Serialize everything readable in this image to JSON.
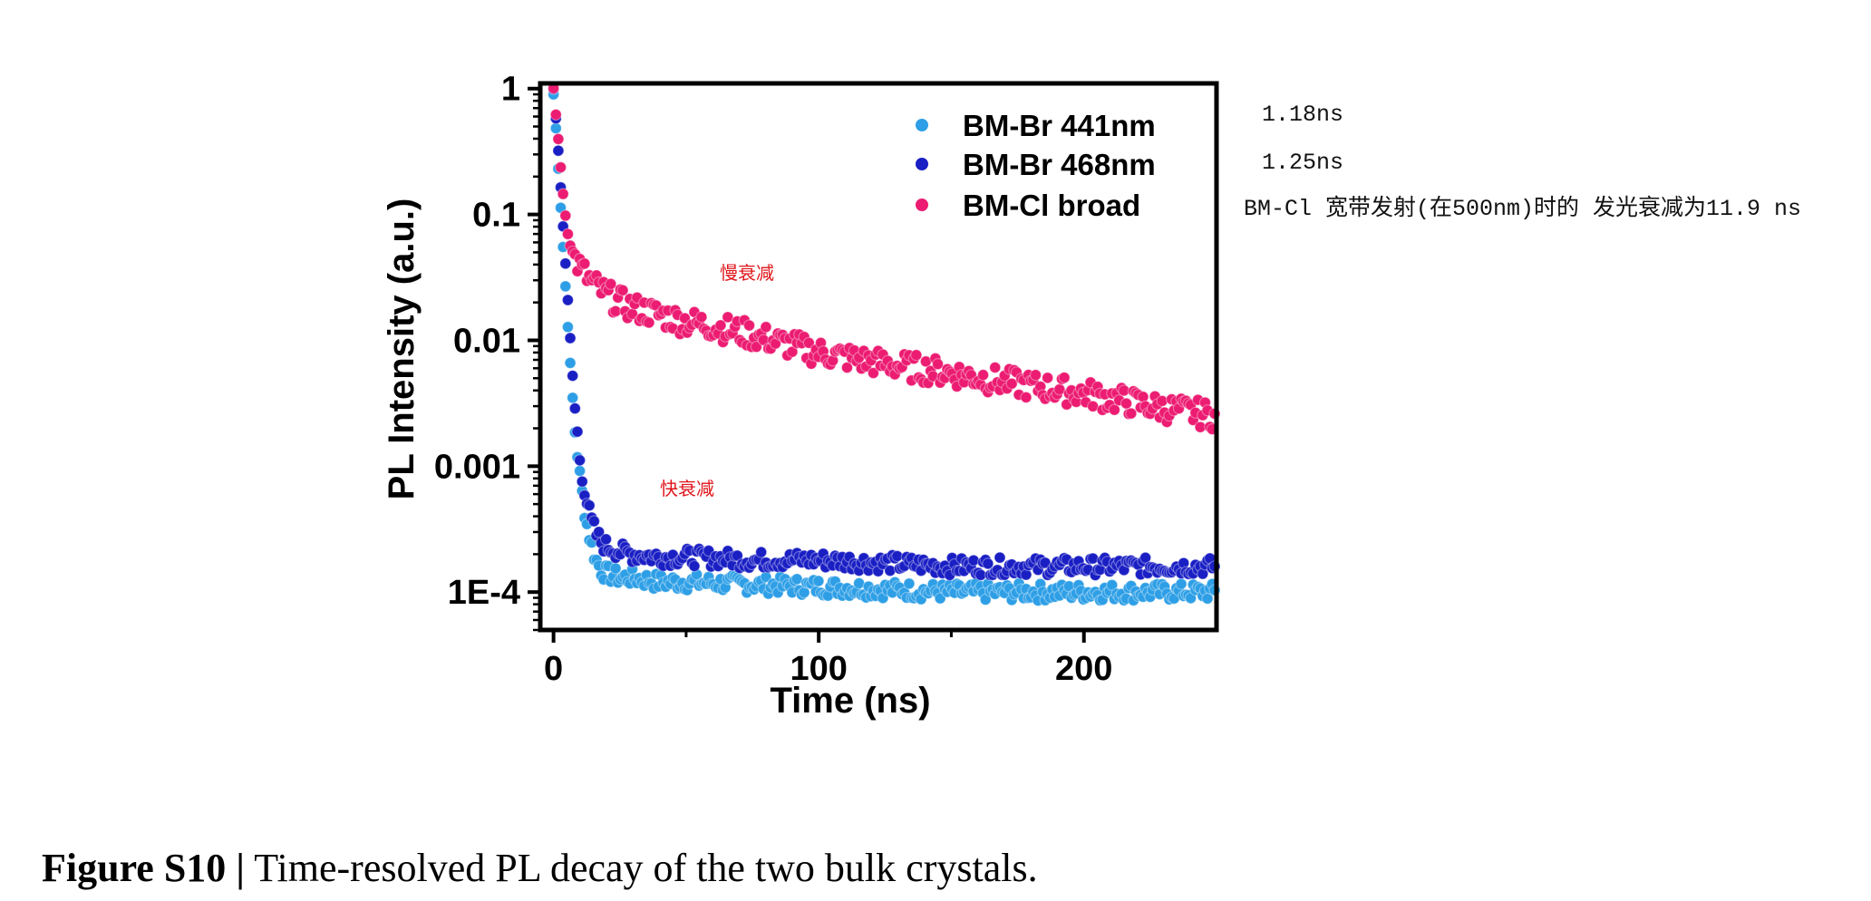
{
  "chart_data": {
    "type": "scatter",
    "xlabel": "Time (ns)",
    "ylabel": "PL Intensity (a.u.)",
    "xlim": [
      -5,
      250
    ],
    "ylim": [
      5e-05,
      1.1
    ],
    "yscale": "log",
    "x_ticks": [
      0,
      100,
      200
    ],
    "x_tick_labels": [
      "0",
      "100",
      "200"
    ],
    "y_ticks": [
      1,
      0.1,
      0.01,
      0.001,
      0.0001
    ],
    "y_tick_labels": [
      "1",
      "0.1",
      "0.01",
      "0.001",
      "1E-4"
    ],
    "legend_position": "top-right",
    "series": [
      {
        "name": "BM-Br 441nm",
        "color": "#2e9fe6",
        "x": [
          0,
          1,
          2,
          3,
          4,
          5,
          6,
          7,
          8,
          10,
          12,
          14,
          16,
          18,
          20,
          25,
          30,
          40,
          50,
          75,
          100,
          125,
          150,
          175,
          200,
          225,
          250
        ],
        "y": [
          0.9,
          0.45,
          0.2,
          0.09,
          0.04,
          0.018,
          0.008,
          0.004,
          0.002,
          0.0008,
          0.0004,
          0.00025,
          0.00018,
          0.00015,
          0.00014,
          0.00013,
          0.00013,
          0.00012,
          0.00012,
          0.000115,
          0.00011,
          0.000105,
          0.0001,
          0.0001,
          0.0001,
          0.0001,
          0.0001
        ]
      },
      {
        "name": "BM-Br 468nm",
        "color": "#1a1fc4",
        "x": [
          0,
          1,
          2,
          3,
          4,
          5,
          6,
          7,
          8,
          10,
          12,
          14,
          16,
          18,
          20,
          25,
          30,
          40,
          50,
          75,
          100,
          125,
          150,
          175,
          200,
          225,
          250
        ],
        "y": [
          1.0,
          0.55,
          0.28,
          0.13,
          0.06,
          0.028,
          0.013,
          0.006,
          0.003,
          0.0011,
          0.0006,
          0.00038,
          0.00029,
          0.00025,
          0.00023,
          0.00021,
          0.0002,
          0.00019,
          0.00019,
          0.00018,
          0.00018,
          0.00017,
          0.00016,
          0.00016,
          0.00016,
          0.00016,
          0.00016
        ]
      },
      {
        "name": "BM-Cl broad",
        "color": "#ec1c72",
        "x": [
          0,
          1,
          2,
          3,
          4,
          5,
          6,
          8,
          10,
          12,
          15,
          20,
          25,
          30,
          40,
          50,
          60,
          75,
          100,
          125,
          150,
          175,
          200,
          225,
          250
        ],
        "y": [
          1.0,
          0.6,
          0.35,
          0.2,
          0.12,
          0.08,
          0.06,
          0.045,
          0.038,
          0.033,
          0.028,
          0.023,
          0.02,
          0.018,
          0.016,
          0.014,
          0.013,
          0.011,
          0.008,
          0.0065,
          0.0055,
          0.0045,
          0.0038,
          0.003,
          0.0025
        ]
      }
    ],
    "annotations": [
      "慢衰减",
      "快衰减"
    ]
  },
  "side_notes": [
    "1.18ns",
    "1.25ns",
    "BM-Cl 宽带发射(在500nm)时的 发光衰减为11.9 ns"
  ],
  "caption": {
    "label": "Figure S10 |",
    "text": " Time-resolved PL decay of the two bulk crystals."
  }
}
